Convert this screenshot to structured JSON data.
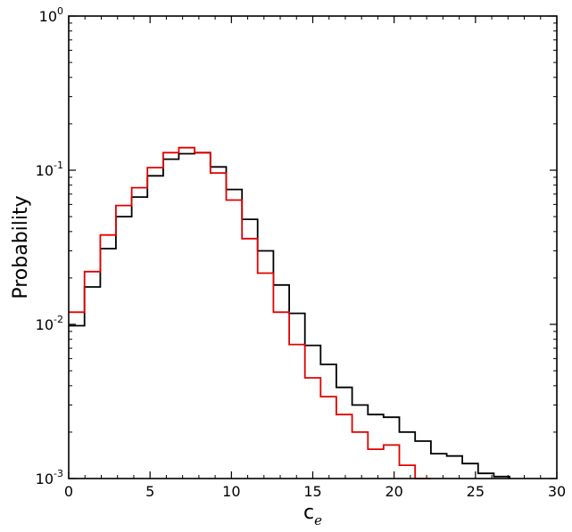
{
  "chart_data": {
    "type": "step",
    "xlabel": "c",
    "xlabel_subscript": "e",
    "ylabel": "Probability",
    "xlim": [
      0,
      30
    ],
    "ylim": [
      0.001,
      1
    ],
    "yscale": "log",
    "grid": false,
    "x_ticks": [
      0,
      5,
      10,
      15,
      20,
      25,
      30
    ],
    "x_tick_labels": [
      "0",
      "5",
      "10",
      "15",
      "20",
      "25",
      "30"
    ],
    "y_ticks": [
      {
        "value": 0.001,
        "base": "10",
        "exp": "-3"
      },
      {
        "value": 0.01,
        "base": "10",
        "exp": "-2"
      },
      {
        "value": 0.1,
        "base": "10",
        "exp": "-1"
      },
      {
        "value": 1,
        "base": "10",
        "exp": "0"
      }
    ],
    "bin_edges": [
      0,
      0.97,
      1.94,
      2.9,
      3.87,
      4.84,
      5.81,
      6.77,
      7.74,
      8.71,
      9.68,
      10.65,
      11.61,
      12.58,
      13.55,
      14.52,
      15.48,
      16.45,
      17.42,
      18.39,
      19.35,
      20.32,
      21.29,
      22.26,
      23.23,
      24.19,
      25.16,
      26.13,
      27.1
    ],
    "series": [
      {
        "color": "#000000",
        "values": [
          0.0098,
          0.0175,
          0.031,
          0.05,
          0.067,
          0.092,
          0.118,
          0.128,
          0.13,
          0.105,
          0.075,
          0.048,
          0.03,
          0.018,
          0.0118,
          0.0073,
          0.0055,
          0.0039,
          0.003,
          0.0026,
          0.0025,
          0.002,
          0.00175,
          0.00145,
          0.0014,
          0.00125,
          0.00108,
          0.00103
        ]
      },
      {
        "color": "#e00000",
        "values": [
          0.012,
          0.022,
          0.038,
          0.059,
          0.077,
          0.104,
          0.13,
          0.14,
          0.13,
          0.096,
          0.064,
          0.036,
          0.0215,
          0.012,
          0.0074,
          0.0045,
          0.0034,
          0.0026,
          0.002,
          0.00155,
          0.00165,
          0.00122,
          0.001
        ]
      }
    ]
  }
}
